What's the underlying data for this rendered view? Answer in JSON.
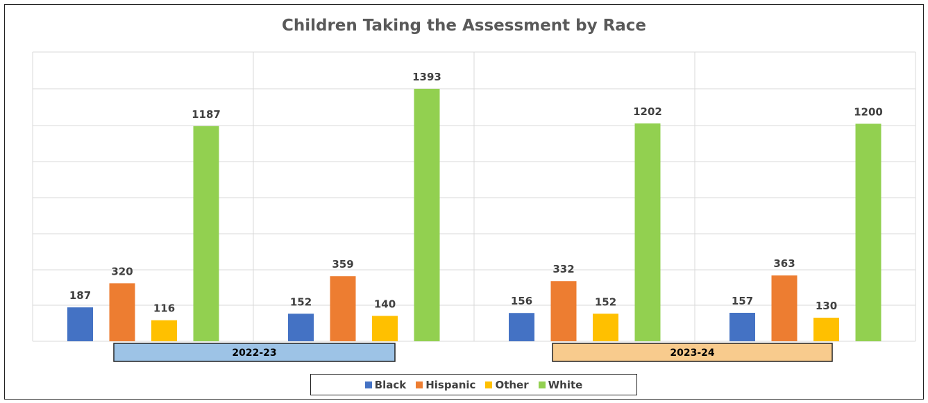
{
  "chart_data": {
    "type": "bar",
    "title": "Children Taking the Assessment by Race",
    "groups": [
      {
        "label": "2022-23",
        "color": "#9dc3e6"
      },
      {
        "label": "2023-24",
        "color": "#f8cb8d"
      }
    ],
    "series": [
      {
        "name": "Black",
        "color": "#4472c4",
        "values": [
          187,
          152,
          156,
          157
        ]
      },
      {
        "name": "Hispanic",
        "color": "#ed7d31",
        "values": [
          320,
          359,
          332,
          363
        ]
      },
      {
        "name": "Other",
        "color": "#ffc000",
        "values": [
          116,
          140,
          152,
          130
        ]
      },
      {
        "name": "White",
        "color": "#92d050",
        "values": [
          1187,
          1393,
          1202,
          1200
        ]
      }
    ],
    "grid": true,
    "legend_position": "bottom"
  }
}
